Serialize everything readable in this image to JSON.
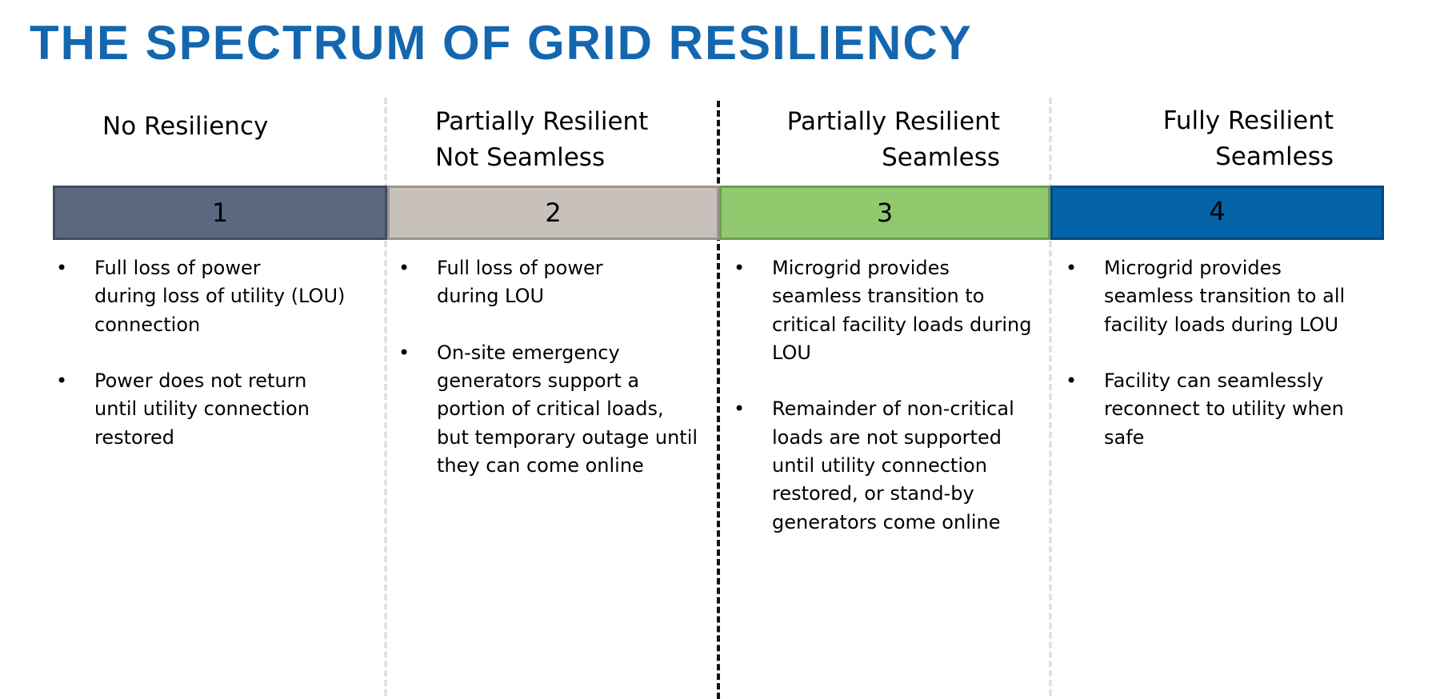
{
  "title": "THE SPECTRUM OF GRID RESILIENCY",
  "colors": {
    "title": "#1467ae",
    "level1_fill": "#5a6880",
    "level1_border": "#424c5e",
    "level2_fill": "#c8c1bb",
    "level2_border": "#9b958f",
    "level3_fill": "#92c96e",
    "level3_border": "#6e9c52",
    "level4_fill": "#0563a8",
    "level4_border": "#034a80",
    "divider_light": "#e2e2e2",
    "divider_dark": "#111111"
  },
  "levels": [
    {
      "heading": [
        "No Resiliency"
      ],
      "number": "1",
      "bullets": [
        "Full loss of power\nduring loss of utility (LOU)\nconnection",
        "Power does not return\nuntil utility connection\nrestored"
      ]
    },
    {
      "heading": [
        "Partially Resilient",
        "Not Seamless"
      ],
      "number": "2",
      "bullets": [
        "Full loss of power\nduring LOU",
        "On-site emergency\ngenerators support a\nportion of critical loads,\nbut temporary outage until\nthey can come online"
      ]
    },
    {
      "heading": [
        "Partially Resilient",
        "Seamless"
      ],
      "number": "3",
      "bullets": [
        "Microgrid provides\nseamless transition to\ncritical facility loads during\nLOU",
        "Remainder of non-critical\nloads are not supported\nuntil utility connection\nrestored, or stand-by\ngenerators come online"
      ]
    },
    {
      "heading": [
        "Fully Resilient",
        "Seamless"
      ],
      "number": "4",
      "bullets": [
        "Microgrid provides\nseamless transition to all\nfacility loads during LOU",
        "Facility can seamlessly\nreconnect to utility when\nsafe"
      ]
    }
  ],
  "bullet_glyph": "•"
}
